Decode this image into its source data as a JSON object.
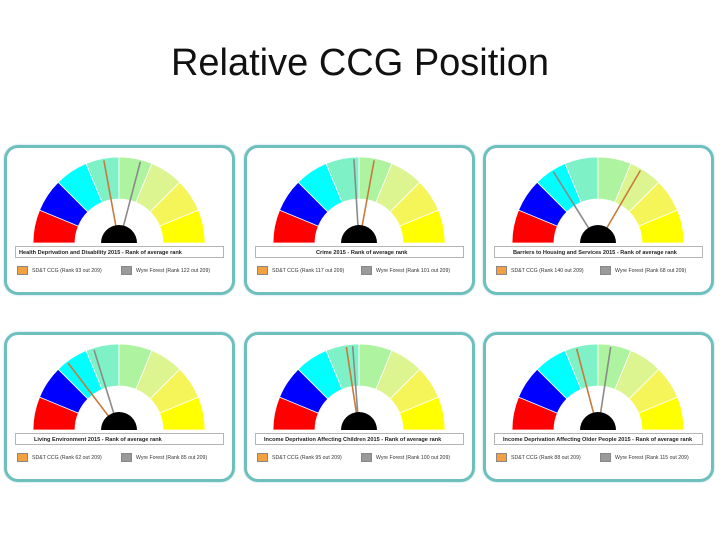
{
  "slide": {
    "title": "Relative CCG Position"
  },
  "colors": {
    "bands": [
      "#ff0000",
      "#0000ff",
      "#00ffff",
      "#7ef2c6",
      "#aef3a0",
      "#dcf590",
      "#f5f55a",
      "#ffff00"
    ],
    "ccg_needle": "#c87a3c",
    "wyre_needle": "#8a8a8a",
    "ccg_swatch": "#f5a040",
    "wyre_swatch": "#9a9a9a",
    "hub": "#000000"
  },
  "chart_data": [
    {
      "type": "gauge",
      "title": "Health Deprivation and Disability 2015 - Rank of average rank",
      "range": [
        1,
        209
      ],
      "series": [
        {
          "name": "SD&T CCG",
          "value": 93,
          "label": "SD&T CCG (Rank 93 out 209)"
        },
        {
          "name": "Wyre Forest",
          "value": 122,
          "label": "Wyre Forest (Rank 122 out 209)"
        }
      ]
    },
    {
      "type": "gauge",
      "title": "Crime 2015 - Rank of average rank",
      "range": [
        1,
        209
      ],
      "series": [
        {
          "name": "SD&T CCG",
          "value": 117,
          "label": "SD&T CCG (Rank 117 out 209)"
        },
        {
          "name": "Wyre Forest",
          "value": 101,
          "label": "Wyre Forest (Rank 101 out 209)"
        }
      ]
    },
    {
      "type": "gauge",
      "title": "Barriers to Housing and Services 2015 - Rank of average rank",
      "range": [
        1,
        209
      ],
      "series": [
        {
          "name": "SD&T CCG",
          "value": 140,
          "label": "SD&T CCG (Rank 140 out 209)"
        },
        {
          "name": "Wyre Forest",
          "value": 68,
          "label": "Wyre Forest (Rank 68 out 209)"
        }
      ]
    },
    {
      "type": "gauge",
      "title": "Living Environment 2015 - Rank of average rank",
      "range": [
        1,
        209
      ],
      "series": [
        {
          "name": "SD&T CCG",
          "value": 62,
          "label": "SD&T CCG (Rank 62 out 209)"
        },
        {
          "name": "Wyre Forest",
          "value": 85,
          "label": "Wyre Forest (Rank 85 out 209)"
        }
      ]
    },
    {
      "type": "gauge",
      "title": "Income Deprivation Affecting Children 2015 - Rank of average rank",
      "range": [
        1,
        209
      ],
      "series": [
        {
          "name": "SD&T CCG",
          "value": 95,
          "label": "SD&T CCG (Rank 95 out 209)"
        },
        {
          "name": "Wyre Forest",
          "value": 100,
          "label": "Wyre Forest (Rank 100 out 209)"
        }
      ]
    },
    {
      "type": "gauge",
      "title": "Income Deprivation Affecting Older People 2015 - Rank of average rank",
      "range": [
        1,
        209
      ],
      "series": [
        {
          "name": "SD&T CCG",
          "value": 88,
          "label": "SD&T CCG (Rank 88 out 209)"
        },
        {
          "name": "Wyre Forest",
          "value": 115,
          "label": "Wyre Forest (Rank 115 out 209)"
        }
      ]
    }
  ]
}
